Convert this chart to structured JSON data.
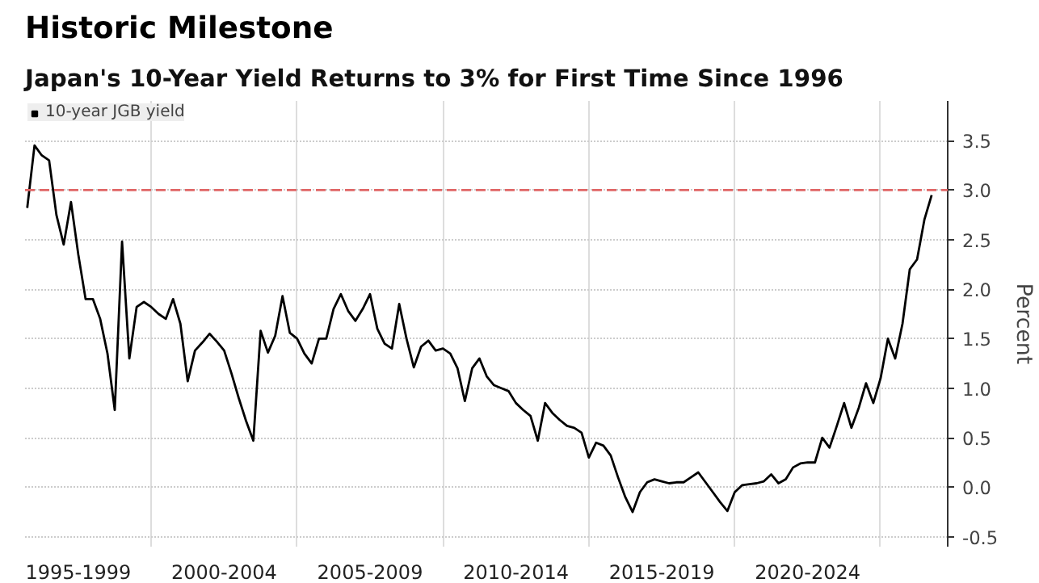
{
  "chart_data": {
    "type": "line",
    "title": "Historic Milestone",
    "subtitle": "Japan's 10-Year Yield Returns to 3% for First Time Since 1996",
    "ylabel": "Percent",
    "categories": [
      null,
      null,
      null,
      null,
      null,
      null,
      null,
      "1995-1999",
      null,
      null,
      null,
      null,
      null,
      null,
      null,
      null,
      null,
      null,
      null,
      null,
      null,
      null,
      null,
      null,
      null,
      null,
      null,
      "2000-2004",
      null,
      null,
      null,
      null,
      null,
      null,
      null,
      null,
      null,
      null,
      null,
      null,
      null,
      null,
      null,
      null,
      null,
      null,
      null,
      "2005-2009",
      null,
      null,
      null,
      null,
      null,
      null,
      null,
      null,
      null,
      null,
      null,
      null,
      null,
      null,
      null,
      null,
      null,
      null,
      null,
      "2010-2014",
      null,
      null,
      null,
      null,
      null,
      null,
      null,
      null,
      null,
      null,
      null,
      null,
      null,
      null,
      null,
      null,
      null,
      null,
      null,
      "2015-2019",
      null,
      null,
      null,
      null,
      null,
      null,
      null,
      null,
      null,
      null,
      null,
      null,
      null,
      null,
      null,
      null,
      null,
      null,
      null,
      "2020-2024",
      null,
      null,
      null,
      null,
      null,
      null,
      null,
      null,
      null,
      null,
      null,
      null,
      null,
      null,
      null,
      null,
      null
    ],
    "series": [
      {
        "name": "10-year JGB yield",
        "color": "#000000",
        "values": [
          2.82,
          3.45,
          3.35,
          3.3,
          2.75,
          2.45,
          2.88,
          2.35,
          1.9,
          1.9,
          1.7,
          1.35,
          0.78,
          2.48,
          1.3,
          1.82,
          1.87,
          1.82,
          1.75,
          1.7,
          1.9,
          1.65,
          1.07,
          1.38,
          1.46,
          1.55,
          1.47,
          1.38,
          1.15,
          0.9,
          0.67,
          0.47,
          1.58,
          1.36,
          1.53,
          1.93,
          1.56,
          1.5,
          1.35,
          1.25,
          1.5,
          1.5,
          1.8,
          1.95,
          1.78,
          1.68,
          1.8,
          1.95,
          1.6,
          1.45,
          1.4,
          1.85,
          1.5,
          1.21,
          1.42,
          1.48,
          1.38,
          1.4,
          1.35,
          1.2,
          0.87,
          1.2,
          1.3,
          1.12,
          1.03,
          1.0,
          0.97,
          0.85,
          0.78,
          0.72,
          0.47,
          0.85,
          0.75,
          0.68,
          0.62,
          0.6,
          0.55,
          0.3,
          0.45,
          0.42,
          0.32,
          0.1,
          -0.1,
          -0.25,
          -0.05,
          0.05,
          0.08,
          0.06,
          0.04,
          0.05,
          0.05,
          0.1,
          0.15,
          0.05,
          -0.05,
          -0.15,
          -0.24,
          -0.05,
          0.02,
          0.03,
          0.04,
          0.06,
          0.13,
          0.04,
          0.08,
          0.2,
          0.24,
          0.25,
          0.25,
          0.5,
          0.4,
          0.62,
          0.85,
          0.6,
          0.8,
          1.05,
          0.85,
          1.1,
          1.5,
          1.3,
          1.65,
          2.2,
          2.3,
          2.7,
          2.95
        ]
      }
    ],
    "ylim": [
      -0.6,
      3.9
    ],
    "yticks": [
      {
        "value": -0.5,
        "label": "-0.5"
      },
      {
        "value": 0,
        "label": "0.0"
      },
      {
        "value": 0.5,
        "label": "0.5"
      },
      {
        "value": 1,
        "label": "1.0"
      },
      {
        "value": 1.5,
        "label": "1.5"
      },
      {
        "value": 2,
        "label": "2.0"
      },
      {
        "value": 2.5,
        "label": "2.5"
      },
      {
        "value": 3,
        "label": "3.0"
      },
      {
        "value": 3.5,
        "label": "3.5"
      }
    ],
    "ref_lines": [
      {
        "axis": "y",
        "value": 3.0,
        "label": null,
        "color": "#e06666",
        "line_style": "dashed"
      }
    ],
    "grid": true,
    "legend": "top left",
    "marker": "none",
    "line_style": "solid"
  }
}
